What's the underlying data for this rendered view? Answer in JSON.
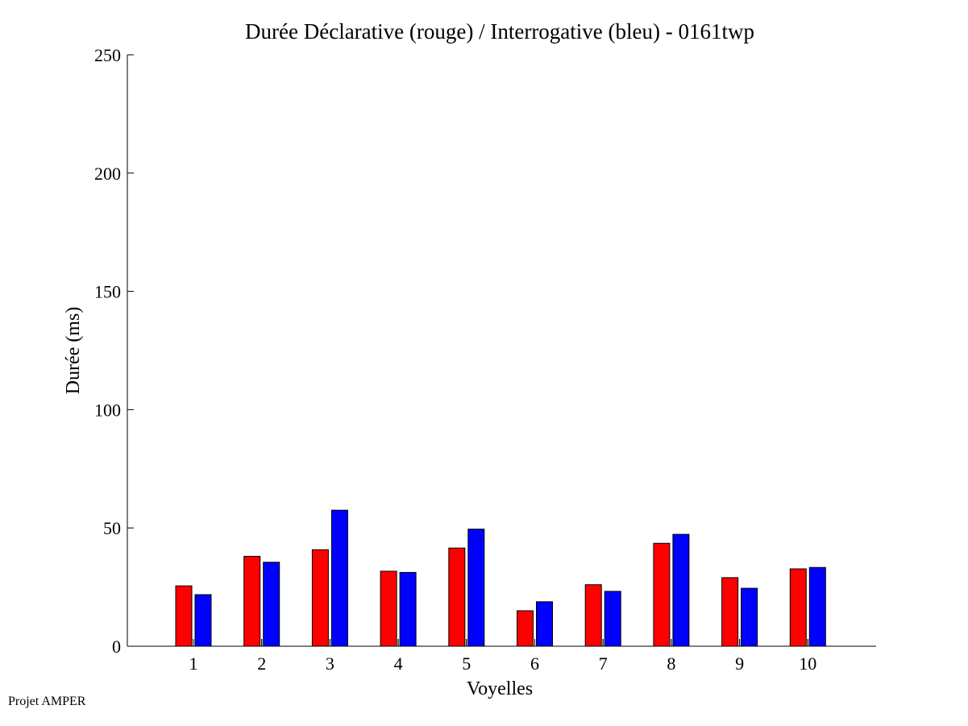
{
  "chart_data": {
    "type": "bar",
    "title": "Durée Déclarative (rouge) / Interrogative (bleu) - 0161twp",
    "xlabel": "Voyelles",
    "ylabel": "Durée (ms)",
    "ylim": [
      0,
      250
    ],
    "yticks": [
      0,
      50,
      100,
      150,
      200,
      250
    ],
    "categories": [
      "1",
      "2",
      "3",
      "4",
      "5",
      "6",
      "7",
      "8",
      "9",
      "10"
    ],
    "series": [
      {
        "color": "#ff0000",
        "values": [
          25.5,
          38,
          40.8,
          31.7,
          41.5,
          15,
          26,
          43.5,
          29,
          32.7
        ]
      },
      {
        "color": "#0000ff",
        "values": [
          21.8,
          35.5,
          57.5,
          31.2,
          49.5,
          18.8,
          23.2,
          47.3,
          24.5,
          33.3
        ]
      }
    ],
    "grid": false,
    "legend": "none"
  },
  "footer": {
    "text": "Projet AMPER"
  }
}
